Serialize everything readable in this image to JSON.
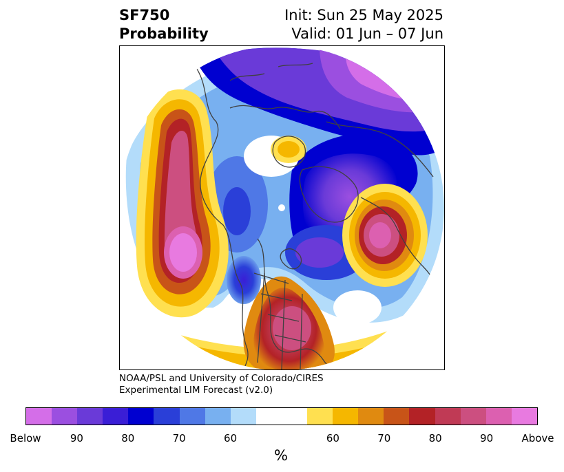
{
  "title": {
    "variable": "SF750",
    "subtitle": "Probability",
    "init": "Init: Sun 25 May 2025",
    "valid": "Valid: 01 Jun – 07 Jun"
  },
  "credit": {
    "line1": "NOAA/PSL and University of Colorado/CIRES",
    "line2": "Experimental LIM Forecast (v2.0)"
  },
  "colorbar": {
    "colors": [
      "#d46ee8",
      "#9b4fe0",
      "#6a3ad8",
      "#3a1ed6",
      "#0000d0",
      "#2a3fd8",
      "#4f78e6",
      "#78b0f0",
      "#b3dcfa",
      "#ffffff",
      "#ffffff",
      "#ffe050",
      "#f5b700",
      "#e08a10",
      "#c85418",
      "#b32226",
      "#c03a55",
      "#cc4f80",
      "#dc60b0",
      "#e87ae0"
    ],
    "tick_labels": [
      "Below",
      "90",
      "80",
      "70",
      "60",
      "60",
      "70",
      "80",
      "90",
      "Above"
    ],
    "unit": "%"
  },
  "map": {
    "projection": "north-polar-stereographic",
    "palette": {
      "below_strong": "#0000d0",
      "below_mid": "#3a1ed6",
      "below_light": "#78b0f0",
      "neutral": "#ffffff",
      "above_light": "#f5b700",
      "above_mid": "#b32226",
      "above_strong": "#cc4f80",
      "coastline": "#404040"
    }
  }
}
